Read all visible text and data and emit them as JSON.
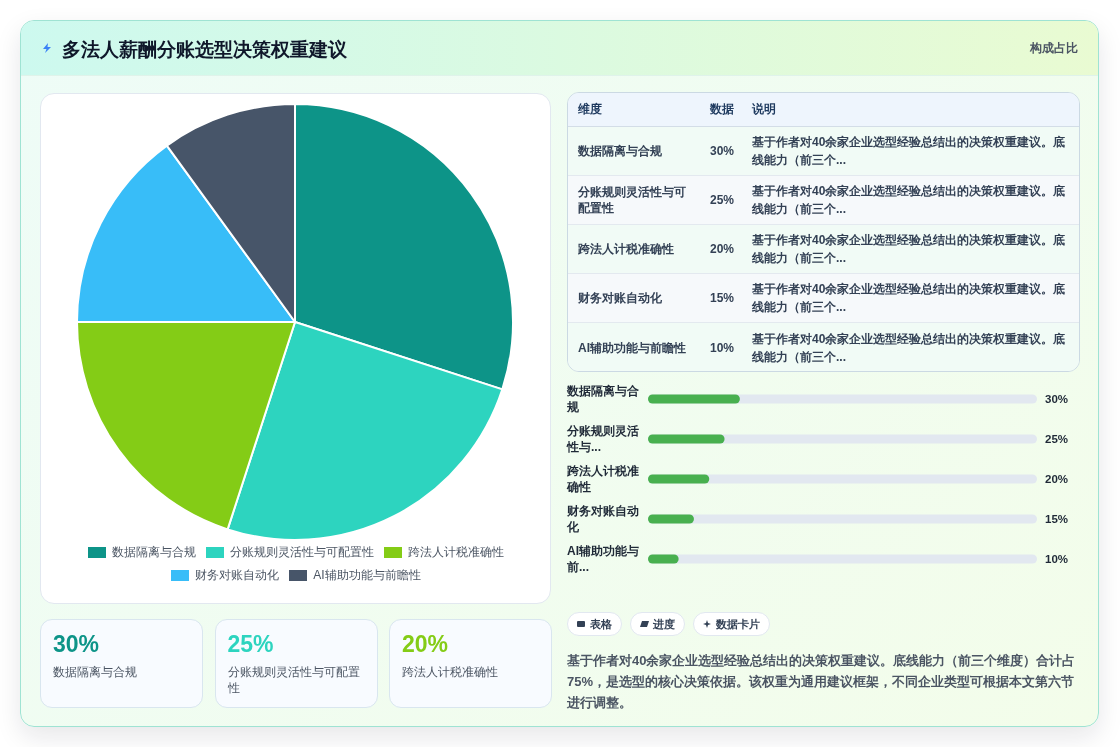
{
  "chart_data": [
    {
      "type": "other",
      "title": "多法人薪酬分账选型决策权重建议",
      "subtitle": "构成占比"
    },
    {
      "type": "pie",
      "categories": [
        "数据隔离与合规",
        "分账规则灵活性与可配置性",
        "跨法人计税准确性",
        "财务对账自动化",
        "AI辅助功能与前瞻性"
      ],
      "values": [
        30,
        25,
        20,
        15,
        10
      ],
      "colors": [
        "#0d9488",
        "#2dd4bf",
        "#84cc16",
        "#38bdf8",
        "#475569"
      ],
      "legend": "bottom"
    },
    {
      "type": "other",
      "categories": [
        "数据隔离与合规",
        "分账规则灵活性与可配置性",
        "跨法人计税准确性",
        "财务对账自动化",
        "AI辅助功能与前瞻性"
      ],
      "values": [
        30,
        25,
        20,
        15,
        10
      ],
      "value_labels": [
        "30%",
        "25%",
        "20%",
        "15%",
        "10%"
      ],
      "annotations": [
        "维度",
        "数据",
        "说明",
        "基于作者对40余家企业选型经验总结出的决策权重建议。底线能力（前三个...",
        "基于作者对40余家企业选型经验总结出的决策权重建议。底线能力（前三个...",
        "基于作者对40余家企业选型经验总结出的决策权重建议。底线能力（前三个...",
        "基于作者对40余家企业选型经验总结出的决策权重建议。底线能力（前三个...",
        "基于作者对40余家企业选型经验总结出的决策权重建议。底线能力（前三个..."
      ]
    },
    {
      "type": "bar",
      "orientation": "horizontal",
      "categories": [
        "数据隔离与合规",
        "分账规则灵活性与...",
        "跨法人计税准确性",
        "财务对账自动化",
        "AI辅助功能与前..."
      ],
      "values": [
        30,
        25,
        20,
        15,
        10
      ],
      "value_labels": [
        "30%",
        "25%",
        "20%",
        "15%",
        "10%"
      ],
      "color": "#48b04f",
      "xlim": [
        0,
        127
      ]
    },
    {
      "type": "other",
      "categories": [
        "数据隔离与合规",
        "分账规则灵活性与可配置性",
        "跨法人计税准确性"
      ],
      "values": [
        30,
        25,
        20
      ],
      "value_labels": [
        "30%",
        "25%",
        "20%"
      ]
    },
    {
      "type": "other",
      "categories": [
        "表格",
        "进度",
        "数据卡片"
      ],
      "annotations": [
        "基于作者对40余家企业选型经验总结出的决策权重建议。底线能力（前三个维度）合计占75%，是选型的核心决策依据。该权重为通用建议框架，不同企业类型可根据本文第六节进行调整。"
      ]
    }
  ]
}
